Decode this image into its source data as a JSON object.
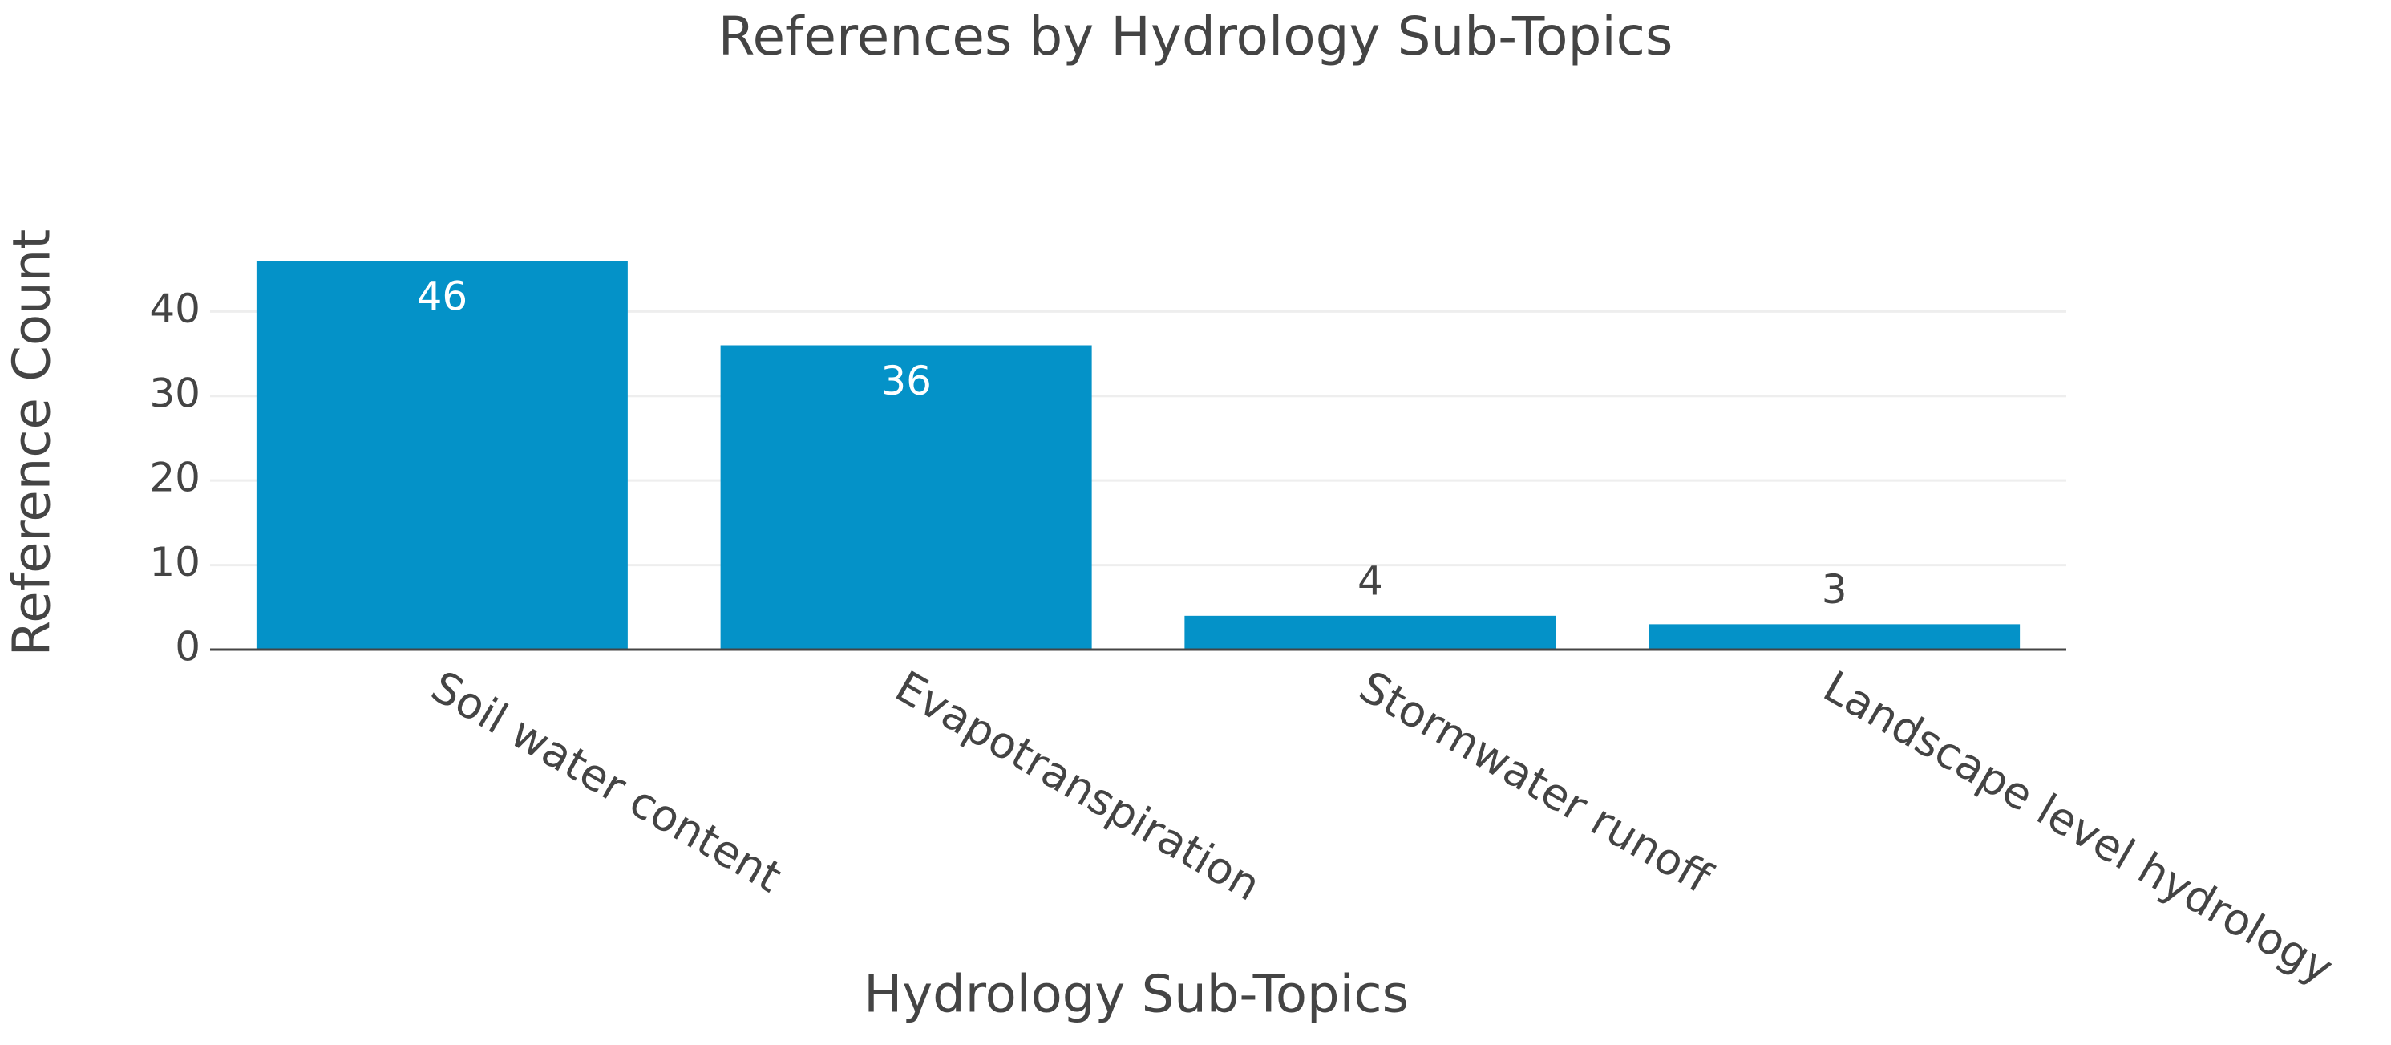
{
  "chart_data": {
    "type": "bar",
    "title": "References by Hydrology Sub-Topics",
    "x_label": "Hydrology Sub-Topics",
    "y_label": "Reference Count",
    "categories": [
      "Soil water content",
      "Evapotranspiration",
      "Stormwater runoff",
      "Landscape level hydrology"
    ],
    "values": [
      46,
      36,
      4,
      3
    ],
    "color": "#0492c8",
    "ylim": [
      0,
      48
    ],
    "yticks": [
      0,
      10,
      20,
      30,
      40
    ],
    "grid": true
  }
}
